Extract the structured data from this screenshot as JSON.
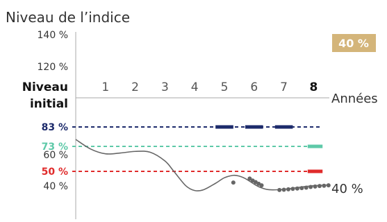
{
  "chart_data": {
    "type": "line",
    "title": "Niveau de l’indice",
    "xlabel": "Années",
    "ylabel": "",
    "x_ticks": [
      "1",
      "2",
      "3",
      "4",
      "5",
      "6",
      "7",
      "8"
    ],
    "y_ticks": [
      {
        "label": "140 %",
        "value": 140
      },
      {
        "label": "120 %",
        "value": 120
      },
      {
        "label": "60 %",
        "value": 60
      },
      {
        "label": "40 %",
        "value": 40
      }
    ],
    "initial_level_label_line1": "Niveau",
    "initial_level_label_line2": "initial",
    "thresholds": [
      {
        "label": "83 %",
        "value": 83,
        "color": "#1c2a6b"
      },
      {
        "label": "73 %",
        "value": 73,
        "color": "#5ec9a8"
      },
      {
        "label": "50 %",
        "value": 50,
        "color": "#e02b2b"
      }
    ],
    "badge": {
      "label": "40 %",
      "color": "#d4b57a"
    },
    "end_label": "40 %",
    "series": [
      {
        "color": "#666666",
        "points": [
          {
            "x": 0,
            "y": 100
          },
          {
            "x": 0.5,
            "y": 88
          },
          {
            "x": 1,
            "y": 82
          },
          {
            "x": 1.5,
            "y": 83
          },
          {
            "x": 2,
            "y": 85
          },
          {
            "x": 2.5,
            "y": 84
          },
          {
            "x": 3,
            "y": 73
          },
          {
            "x": 3.3,
            "y": 60
          },
          {
            "x": 3.7,
            "y": 42
          },
          {
            "x": 4,
            "y": 36
          },
          {
            "x": 4.3,
            "y": 37
          },
          {
            "x": 4.7,
            "y": 45
          },
          {
            "x": 5,
            "y": 52
          },
          {
            "x": 5.3,
            "y": 55
          },
          {
            "x": 5.5,
            "y": 54
          },
          {
            "x": 5.7,
            "y": 51
          },
          {
            "x": 6,
            "y": 44
          },
          {
            "x": 6.2,
            "y": 40
          },
          {
            "x": 6.5,
            "y": 37
          },
          {
            "x": 7,
            "y": 37.5
          },
          {
            "x": 7.5,
            "y": 40
          },
          {
            "x": 8,
            "y": 42
          },
          {
            "x": 8.5,
            "y": 43
          }
        ]
      }
    ],
    "markers": [
      {
        "x": 5.3,
        "y": 46
      },
      {
        "x": 5.85,
        "y": 51
      },
      {
        "x": 5.95,
        "y": 48.5
      },
      {
        "x": 6.05,
        "y": 46.5
      },
      {
        "x": 6.15,
        "y": 44.5
      },
      {
        "x": 6.25,
        "y": 42.5
      },
      {
        "x": 6.85,
        "y": 36.6
      },
      {
        "x": 7.0,
        "y": 37.0
      },
      {
        "x": 7.15,
        "y": 37.5
      },
      {
        "x": 7.3,
        "y": 38.0
      },
      {
        "x": 7.45,
        "y": 38.5
      },
      {
        "x": 7.6,
        "y": 39.0
      },
      {
        "x": 7.75,
        "y": 39.6
      },
      {
        "x": 7.9,
        "y": 40.4
      },
      {
        "x": 8.05,
        "y": 41.0
      },
      {
        "x": 8.2,
        "y": 41.6
      },
      {
        "x": 8.35,
        "y": 42.0
      },
      {
        "x": 8.5,
        "y": 42.5
      }
    ],
    "observation_segments": [
      {
        "x0": 4.7,
        "x1": 5.3,
        "threshold": 83
      },
      {
        "x0": 5.7,
        "x1": 6.3,
        "threshold": 83
      },
      {
        "x0": 6.7,
        "x1": 7.3,
        "threshold": 83
      },
      {
        "x0": 7.8,
        "x1": 8.3,
        "threshold": 73
      },
      {
        "x0": 7.8,
        "x1": 8.3,
        "threshold": 50
      }
    ],
    "grid": false
  }
}
